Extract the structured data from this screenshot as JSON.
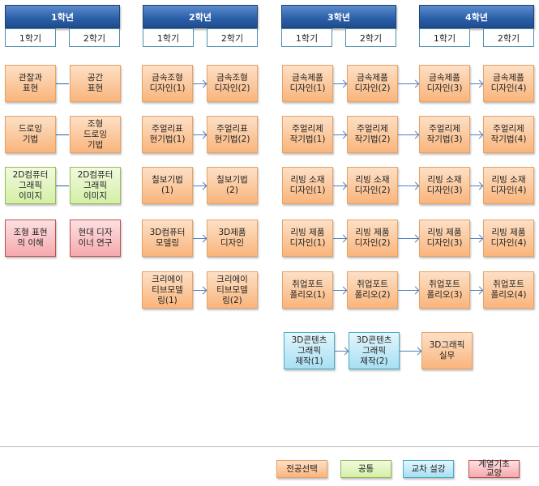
{
  "colors": {
    "major": "#f9b57c",
    "common": "#d4efa6",
    "cross": "#a8dff2",
    "basic": "#f5a9ad",
    "header": "#2a5ea8"
  },
  "years": [
    {
      "label": "1학년",
      "semesters": [
        "1학기",
        "2학기"
      ]
    },
    {
      "label": "2학년",
      "semesters": [
        "1학기",
        "2학기"
      ]
    },
    {
      "label": "3학년",
      "semesters": [
        "1학기",
        "2학기"
      ]
    },
    {
      "label": "4학년",
      "semesters": [
        "1학기",
        "2학기"
      ]
    }
  ],
  "rows": [
    [
      {
        "name": "관찰과\n표현",
        "type": "major"
      },
      {
        "name": "공간\n표현",
        "type": "major"
      },
      {
        "name": "금속조형\n디자인(1)",
        "type": "major"
      },
      {
        "name": "금속조형\n디자인(2)",
        "type": "major"
      },
      {
        "name": "금속제품\n디자인(1)",
        "type": "major"
      },
      {
        "name": "금속제품\n디자인(2)",
        "type": "major"
      },
      {
        "name": "금속제품\n디자인(3)",
        "type": "major"
      },
      {
        "name": "금속제품\n디자인(4)",
        "type": "major"
      }
    ],
    [
      {
        "name": "드로잉\n기법",
        "type": "major"
      },
      {
        "name": "조형\n드로잉\n기법",
        "type": "major"
      },
      {
        "name": "주얼리표\n현기법(1)",
        "type": "major"
      },
      {
        "name": "주얼리표\n현기법(2)",
        "type": "major"
      },
      {
        "name": "주얼리제\n작기법(1)",
        "type": "major"
      },
      {
        "name": "주얼리제\n작기법(2)",
        "type": "major"
      },
      {
        "name": "주얼리제\n작기법(3)",
        "type": "major"
      },
      {
        "name": "주얼리제\n작기법(4)",
        "type": "major"
      }
    ],
    [
      {
        "name": "2D컴퓨터\n그래픽\n이미지",
        "type": "common"
      },
      {
        "name": "2D컴퓨터\n그래픽\n이미지",
        "type": "common"
      },
      {
        "name": "칠보기법\n(1)",
        "type": "major"
      },
      {
        "name": "칠보기법\n(2)",
        "type": "major"
      },
      {
        "name": "리빙 소재\n디자인(1)",
        "type": "major"
      },
      {
        "name": "리빙 소재\n디자인(2)",
        "type": "major"
      },
      {
        "name": "리빙 소재\n디자인(3)",
        "type": "major"
      },
      {
        "name": "리빙 소재\n디자인(4)",
        "type": "major"
      }
    ],
    [
      {
        "name": "조형 표현\n의 이해",
        "type": "basic"
      },
      {
        "name": "현대 디자\n이너 연구",
        "type": "basic"
      },
      {
        "name": "3D컴퓨터\n모델링",
        "type": "major"
      },
      {
        "name": "3D제품\n디자인",
        "type": "major"
      },
      {
        "name": "리빙 제품\n디자인(1)",
        "type": "major"
      },
      {
        "name": "리빙 제품\n디자인(2)",
        "type": "major"
      },
      {
        "name": "리빙 제품\n디자인(3)",
        "type": "major"
      },
      {
        "name": "리빙 제품\n디자인(4)",
        "type": "major"
      }
    ],
    [
      null,
      null,
      {
        "name": "크리에이\n티브모델\n링(1)",
        "type": "major"
      },
      {
        "name": "크리에이\n티브모델\n링(2)",
        "type": "major"
      },
      {
        "name": "취업포트\n폴리오(1)",
        "type": "major"
      },
      {
        "name": "취업포트\n폴리오(2)",
        "type": "major"
      },
      {
        "name": "취업포트\n폴리오(3)",
        "type": "major"
      },
      {
        "name": "취업포트\n폴리오(4)",
        "type": "major"
      }
    ],
    [
      null,
      null,
      null,
      null,
      {
        "name": "3D콘텐츠\n그래픽\n제작(1)",
        "type": "cross"
      },
      {
        "name": "3D콘텐츠\n그래픽\n제작(2)",
        "type": "cross"
      },
      {
        "name": "3D그래픽\n실무",
        "type": "major"
      },
      null
    ]
  ],
  "legend": [
    {
      "label": "전공선택",
      "type": "major"
    },
    {
      "label": "공통",
      "type": "common"
    },
    {
      "label": "교차 설강",
      "type": "cross"
    },
    {
      "label": "계열기초\n교양",
      "type": "basic"
    }
  ]
}
